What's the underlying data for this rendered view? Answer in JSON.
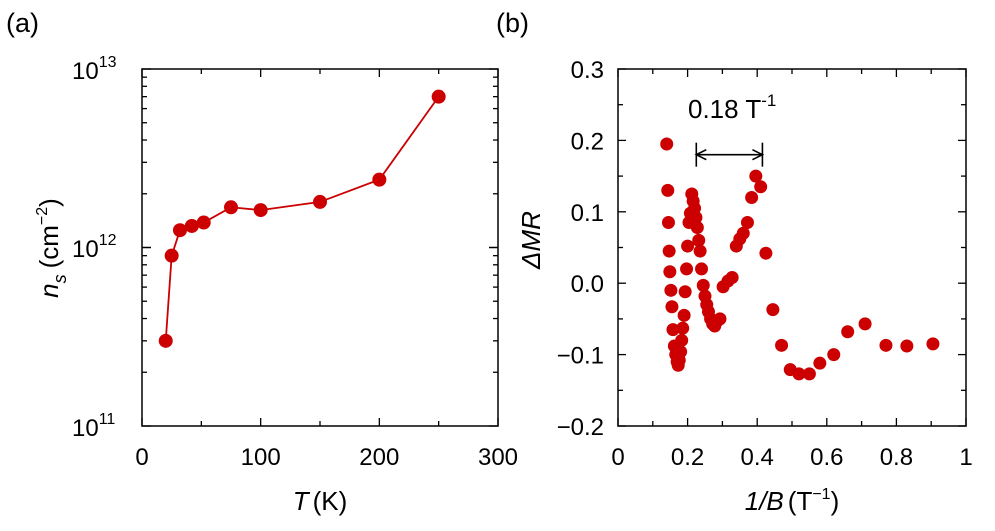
{
  "panels": {
    "a": "(a)",
    "b": "(b)"
  },
  "chart_data": [
    {
      "id": "a",
      "type": "line",
      "yscale": "log",
      "xlim": [
        0,
        300
      ],
      "ylim": [
        100000000000.0,
        10000000000000.0
      ],
      "xticks": [
        0,
        100,
        200,
        300
      ],
      "xtick_labels": [
        "0",
        "100",
        "200",
        "300"
      ],
      "ytick_labels": [
        {
          "base": "10",
          "exp": "13"
        },
        {
          "base": "10",
          "exp": "12"
        },
        {
          "base": "10",
          "exp": "11"
        }
      ],
      "xlabel": {
        "var": "T",
        "unit": "(K)"
      },
      "ylabel": {
        "var": "n",
        "sub": "s",
        "unit_pre": "(cm",
        "unit_exp": "−2",
        "unit_post": ")"
      },
      "series": [
        {
          "name": "n_s",
          "color": "#cc0000",
          "x": [
            20,
            25,
            32,
            42,
            52,
            75,
            100,
            150,
            200,
            250
          ],
          "y": [
            300000000000.0,
            900000000000.0,
            1250000000000.0,
            1320000000000.0,
            1380000000000.0,
            1680000000000.0,
            1620000000000.0,
            1800000000000.0,
            2400000000000.0,
            7000000000000.0
          ]
        }
      ]
    },
    {
      "id": "b",
      "type": "scatter",
      "xlim": [
        0,
        1
      ],
      "ylim": [
        -0.2,
        0.3
      ],
      "xticks": [
        0,
        0.2,
        0.4,
        0.6,
        0.8,
        1
      ],
      "xtick_labels": [
        "0",
        "0.2",
        "0.4",
        "0.6",
        "0.8",
        "1"
      ],
      "yticks": [
        -0.2,
        -0.1,
        0,
        0.1,
        0.2,
        0.3
      ],
      "ytick_labels": [
        "−0.2",
        "−0.1",
        "0.0",
        "0.1",
        "0.2",
        "0.3"
      ],
      "xlabel": {
        "var": "1/B",
        "unit_pre": "(T",
        "unit_exp": "−1",
        "unit_post": ")"
      },
      "ylabel": {
        "var": "ΔMR"
      },
      "annotation": {
        "text": "0.18 T",
        "exp": "-1",
        "x1": 0.225,
        "x2": 0.415,
        "y": 0.18
      },
      "series": [
        {
          "name": "ΔMR",
          "color": "#cc0000",
          "x": [
            0.14,
            0.143,
            0.145,
            0.147,
            0.149,
            0.152,
            0.155,
            0.158,
            0.162,
            0.166,
            0.17,
            0.173,
            0.176,
            0.18,
            0.183,
            0.186,
            0.19,
            0.193,
            0.197,
            0.2,
            0.204,
            0.208,
            0.212,
            0.216,
            0.22,
            0.224,
            0.228,
            0.232,
            0.236,
            0.24,
            0.245,
            0.25,
            0.255,
            0.26,
            0.266,
            0.272,
            0.278,
            0.285,
            0.293,
            0.302,
            0.316,
            0.328,
            0.34,
            0.35,
            0.36,
            0.372,
            0.384,
            0.396,
            0.41,
            0.425,
            0.445,
            0.47,
            0.495,
            0.52,
            0.55,
            0.58,
            0.62,
            0.66,
            0.71,
            0.77,
            0.83,
            0.905
          ],
          "y": [
            0.195,
            0.13,
            0.085,
            0.045,
            0.016,
            -0.01,
            -0.033,
            -0.065,
            -0.088,
            -0.1,
            -0.11,
            -0.115,
            -0.108,
            -0.096,
            -0.08,
            -0.063,
            -0.045,
            -0.012,
            0.02,
            0.052,
            0.085,
            0.098,
            0.125,
            0.115,
            0.105,
            0.092,
            0.078,
            0.06,
            0.045,
            0.02,
            -0.003,
            -0.018,
            -0.03,
            -0.04,
            -0.05,
            -0.057,
            -0.06,
            -0.053,
            -0.05,
            -0.005,
            0.003,
            0.008,
            0.052,
            0.062,
            0.07,
            0.085,
            0.12,
            0.15,
            0.135,
            0.042,
            -0.037,
            -0.087,
            -0.121,
            -0.127,
            -0.127,
            -0.112,
            -0.1,
            -0.068,
            -0.057,
            -0.087,
            -0.088,
            -0.085
          ]
        }
      ]
    }
  ]
}
